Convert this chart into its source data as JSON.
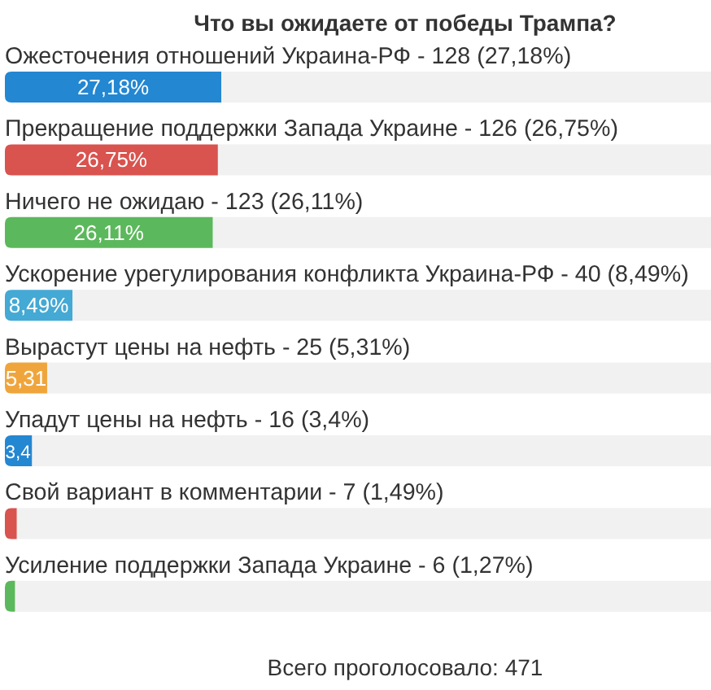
{
  "chart_data": {
    "type": "bar",
    "orientation": "horizontal",
    "title": "Что вы ожидаете от победы Трампа?",
    "categories": [
      "Ожесточения отношений Украина-РФ - 128 (27,18%)",
      "Прекращение поддержки Запада Украине - 126 (26,75%)",
      "Ничего не ожидаю - 123 (26,11%)",
      "Ускорение урегулирования конфликта Украина-РФ - 40 (8,49%)",
      "Вырастут цены на нефть - 25 (5,31%)",
      "Упадут цены на нефть - 16 (3,4%)",
      "Свой вариант в комментарии - 7 (1,49%)",
      "Усиление поддержки Запада Украине - 6 (1,27%)"
    ],
    "values": [
      27.18,
      26.75,
      26.11,
      8.49,
      5.31,
      3.4,
      1.49,
      1.27
    ],
    "colors": [
      "#2387d2",
      "#d9534f",
      "#5cb85c",
      "#44a9d4",
      "#f0a53c",
      "#2387d2",
      "#d9534f",
      "#5cb85c"
    ],
    "value_labels": [
      "27,18%",
      "26,75%",
      "26,11%",
      "8,49%",
      "5,31",
      "3,4",
      null,
      null
    ],
    "annotations": [
      "Всего проголосовало: 471"
    ]
  }
}
